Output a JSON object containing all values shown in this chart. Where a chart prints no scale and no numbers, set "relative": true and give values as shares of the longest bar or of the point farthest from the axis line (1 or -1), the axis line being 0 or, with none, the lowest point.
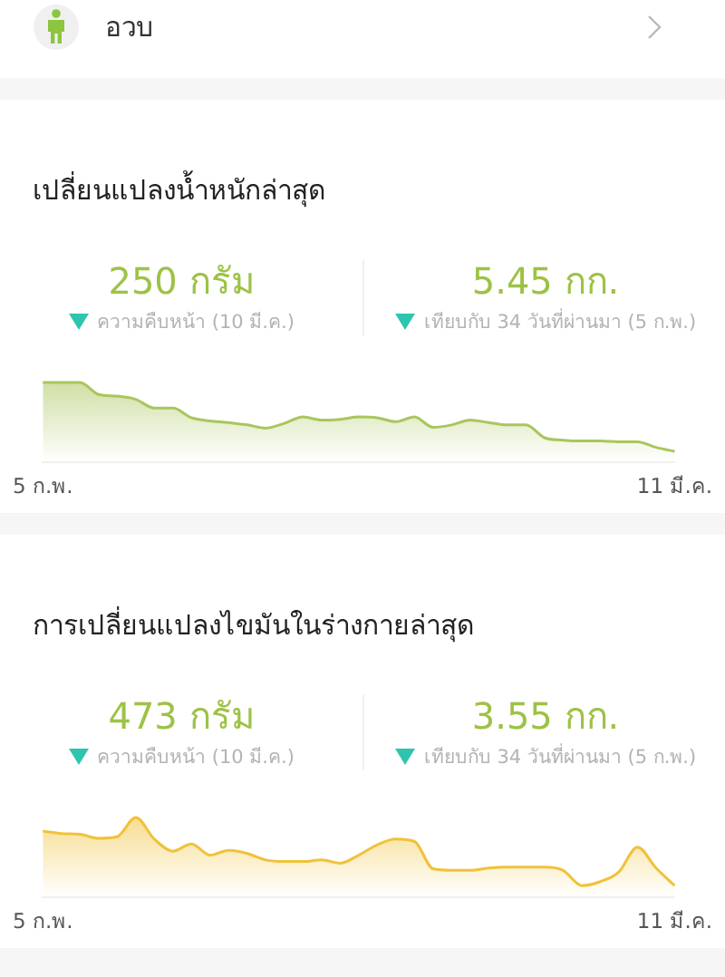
{
  "chart_data": [
    {
      "type": "other",
      "title": "อวบ"
    },
    {
      "type": "area",
      "title": "เปลี่ยนแปลงน้ำหนักล่าสุด",
      "annotations": [
        "250 กรัม",
        "ความคืบหน้า (10 มี.ค.)",
        "5.45 กก.",
        "เทียบกับ 34 วันที่ผ่านมา (5 ก.พ.)"
      ],
      "categories": [
        "5 ก.พ.",
        null,
        null,
        null,
        null,
        null,
        null,
        null,
        null,
        null,
        null,
        null,
        null,
        null,
        null,
        null,
        null,
        null,
        null,
        null,
        null,
        null,
        null,
        null,
        null,
        null,
        null,
        null,
        null,
        null,
        null,
        null,
        null,
        null,
        "11 มี.ค."
      ],
      "series": [
        {
          "color": "#a9c65c",
          "values": [
            1,
            1,
            1,
            0.85,
            0.83,
            0.79,
            0.68,
            0.68,
            0.56,
            0.52,
            0.5,
            0.47,
            0.43,
            0.49,
            0.57,
            0.53,
            0.54,
            0.57,
            0.56,
            0.51,
            0.57,
            0.44,
            0.47,
            0.53,
            0.5,
            0.47,
            0.47,
            0.31,
            0.28,
            0.27,
            0.27,
            0.26,
            0.26,
            0.19,
            0.14
          ]
        }
      ],
      "relative": true
    },
    {
      "type": "area",
      "title": "การเปลี่ยนแปลงไขมันในร่างกายล่าสุด",
      "annotations": [
        "473 กรัม",
        "ความคืบหน้า (10 มี.ค.)",
        "3.55 กก.",
        "เทียบกับ 34 วันที่ผ่านมา (5 ก.พ.)"
      ],
      "categories": [
        "5 ก.พ.",
        null,
        null,
        null,
        null,
        null,
        null,
        null,
        null,
        null,
        null,
        null,
        null,
        null,
        null,
        null,
        null,
        null,
        null,
        null,
        null,
        null,
        null,
        null,
        null,
        null,
        null,
        null,
        null,
        null,
        null,
        null,
        null,
        null,
        "11 มี.ค."
      ],
      "series": [
        {
          "color": "#f0c238",
          "values": [
            0.83,
            0.8,
            0.79,
            0.74,
            0.76,
            1,
            0.73,
            0.58,
            0.67,
            0.53,
            0.59,
            0.55,
            0.47,
            0.45,
            0.45,
            0.47,
            0.43,
            0.53,
            0.66,
            0.73,
            0.7,
            0.36,
            0.34,
            0.34,
            0.37,
            0.38,
            0.38,
            0.38,
            0.34,
            0.15,
            0.2,
            0.32,
            0.63,
            0.37,
            0.15
          ]
        }
      ],
      "relative": true
    }
  ]
}
